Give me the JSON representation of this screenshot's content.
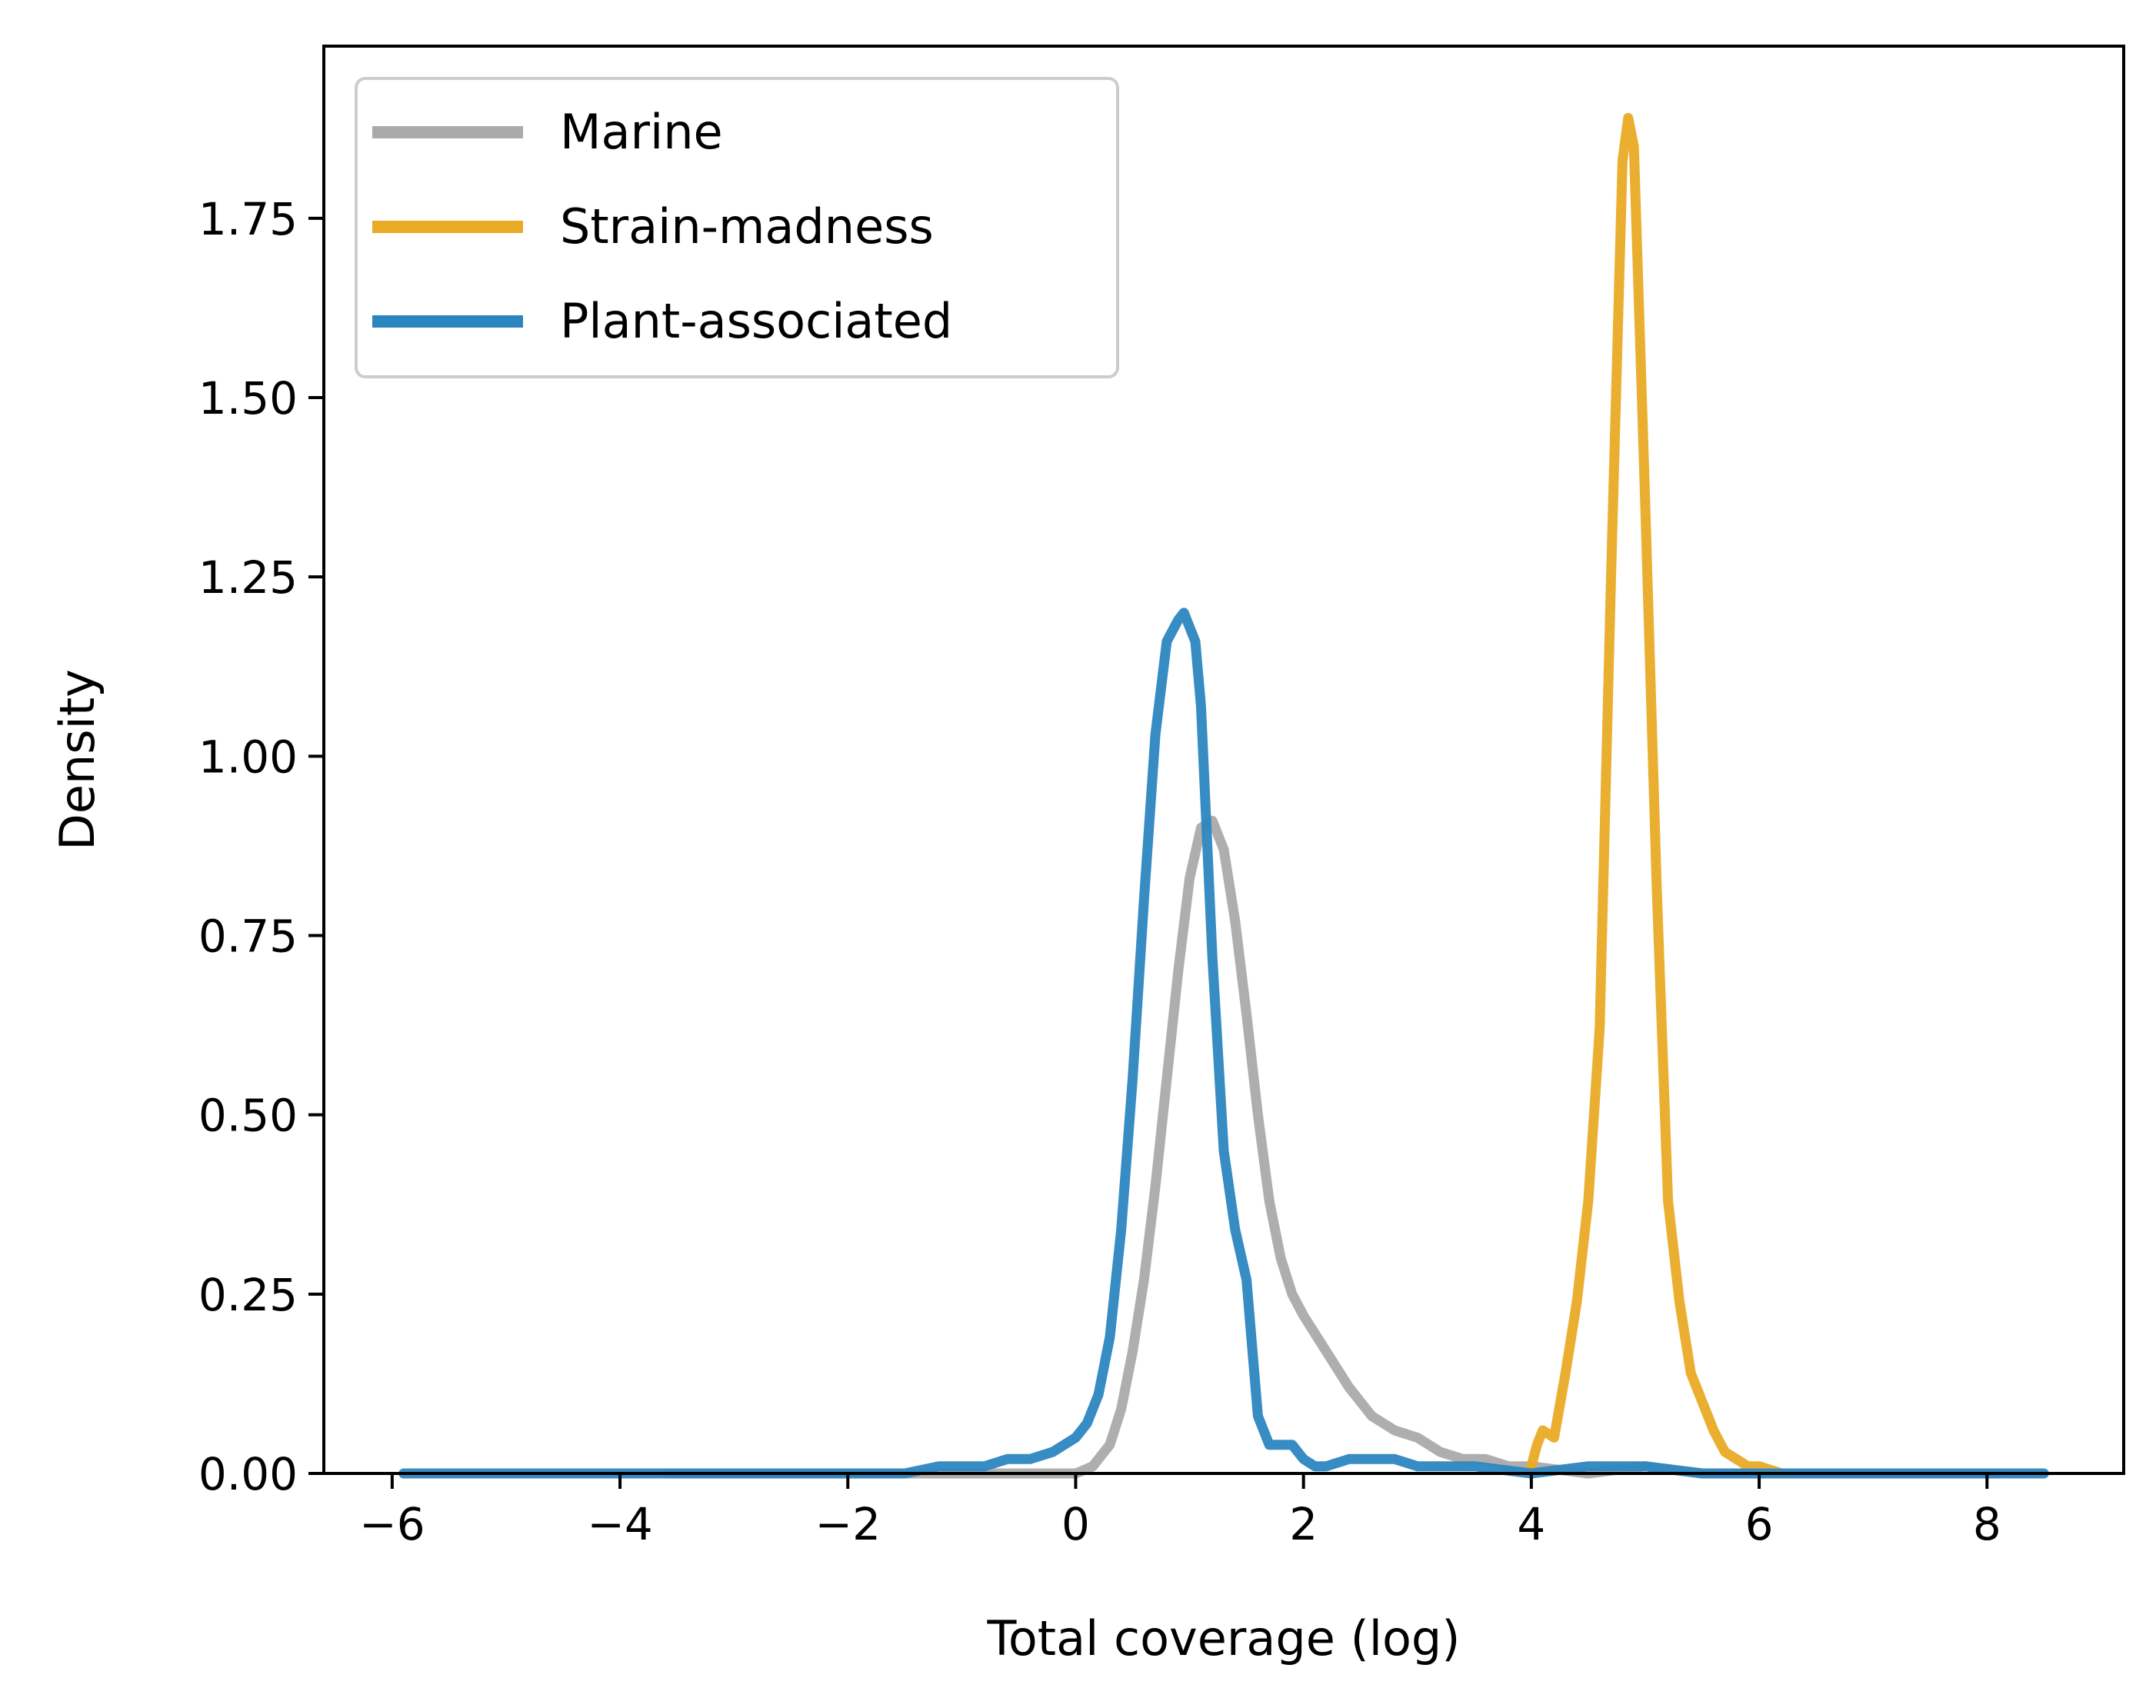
{
  "chart_data": {
    "type": "line",
    "title": "",
    "xlabel": "Total coverage (log)",
    "ylabel": "Density",
    "xlim": [
      -6.6,
      9.2
    ],
    "ylim": [
      0,
      1.99
    ],
    "xticks": [
      -6,
      -4,
      -2,
      0,
      2,
      4,
      6,
      8
    ],
    "xtick_labels": [
      "−6",
      "−4",
      "−2",
      "0",
      "2",
      "4",
      "6",
      "8"
    ],
    "yticks": [
      0,
      0.25,
      0.5,
      0.75,
      1.0,
      1.25,
      1.5,
      1.75
    ],
    "ytick_labels": [
      "0.00",
      "0.25",
      "0.50",
      "0.75",
      "1.00",
      "1.25",
      "1.50",
      "1.75"
    ],
    "grid": false,
    "legend_position": "top-left",
    "series": [
      {
        "name": "Marine",
        "color": "#aaaaaa",
        "x": [
          -3.6,
          -2.0,
          -1.0,
          -0.5,
          0.0,
          0.15,
          0.3,
          0.4,
          0.5,
          0.6,
          0.7,
          0.8,
          0.9,
          1.0,
          1.1,
          1.2,
          1.3,
          1.4,
          1.5,
          1.6,
          1.7,
          1.8,
          1.9,
          2.0,
          2.2,
          2.4,
          2.6,
          2.8,
          3.0,
          3.2,
          3.4,
          3.6,
          3.8,
          4.0,
          4.5,
          5.0,
          5.5,
          6.0,
          6.5,
          7.0,
          7.5,
          8.1
        ],
        "y": [
          0.0,
          0.0,
          0.0,
          0.0,
          0.0,
          0.01,
          0.04,
          0.09,
          0.17,
          0.27,
          0.4,
          0.55,
          0.7,
          0.83,
          0.9,
          0.91,
          0.87,
          0.77,
          0.64,
          0.5,
          0.38,
          0.3,
          0.25,
          0.22,
          0.17,
          0.12,
          0.08,
          0.06,
          0.05,
          0.03,
          0.02,
          0.02,
          0.01,
          0.01,
          0.0,
          0.01,
          0.0,
          0.0,
          0.0,
          0.0,
          0.0,
          0.0
        ]
      },
      {
        "name": "Strain-madness",
        "color": "#e9ab25",
        "x": [
          4.0,
          4.05,
          4.1,
          4.2,
          4.3,
          4.4,
          4.5,
          4.6,
          4.7,
          4.8,
          4.85,
          4.9,
          5.0,
          5.1,
          5.2,
          5.3,
          5.4,
          5.5,
          5.6,
          5.7,
          5.8,
          5.9,
          6.0,
          6.2
        ],
        "y": [
          0.01,
          0.04,
          0.06,
          0.05,
          0.14,
          0.24,
          0.38,
          0.62,
          1.25,
          1.83,
          1.89,
          1.85,
          1.35,
          0.82,
          0.38,
          0.24,
          0.14,
          0.1,
          0.06,
          0.03,
          0.02,
          0.01,
          0.01,
          0.0
        ]
      },
      {
        "name": "Plant-associated",
        "color": "#2b86c0",
        "x": [
          -5.9,
          -4.0,
          -3.0,
          -2.0,
          -1.5,
          -1.2,
          -1.0,
          -0.8,
          -0.6,
          -0.4,
          -0.2,
          0.0,
          0.1,
          0.2,
          0.3,
          0.4,
          0.5,
          0.6,
          0.7,
          0.8,
          0.9,
          0.95,
          1.0,
          1.05,
          1.1,
          1.2,
          1.3,
          1.4,
          1.5,
          1.6,
          1.7,
          1.8,
          1.9,
          2.0,
          2.1,
          2.2,
          2.4,
          2.6,
          2.8,
          3.0,
          3.5,
          4.0,
          4.5,
          5.0,
          5.5,
          6.0,
          7.0,
          8.5
        ],
        "y": [
          0.0,
          0.0,
          0.0,
          0.0,
          0.0,
          0.01,
          0.01,
          0.01,
          0.02,
          0.02,
          0.03,
          0.05,
          0.07,
          0.11,
          0.19,
          0.34,
          0.55,
          0.8,
          1.03,
          1.16,
          1.19,
          1.2,
          1.18,
          1.16,
          1.07,
          0.72,
          0.45,
          0.34,
          0.27,
          0.08,
          0.04,
          0.04,
          0.04,
          0.02,
          0.01,
          0.01,
          0.02,
          0.02,
          0.02,
          0.01,
          0.01,
          0.0,
          0.01,
          0.01,
          0.0,
          0.0,
          0.0,
          0.0
        ]
      }
    ]
  }
}
